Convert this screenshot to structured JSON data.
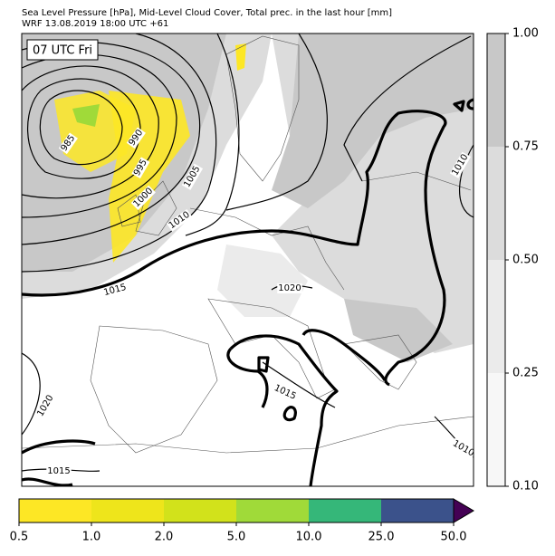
{
  "header": {
    "line1": "Sea Level Pressure [hPa], Mid-Level Cloud Cover, Total prec. in the last hour [mm]",
    "line2": "WRF 13.08.2019 18:00 UTC +61"
  },
  "map": {
    "time_label": "07 UTC Fri",
    "contour_labels": [
      "985",
      "990",
      "995",
      "1000",
      "1005",
      "1010",
      "1015",
      "1020",
      "1015",
      "1020",
      "1015",
      "1010",
      "1010"
    ]
  },
  "cloud_colorbar": {
    "ticks": [
      "0.10",
      "0.25",
      "0.50",
      "0.75",
      "1.00"
    ],
    "colors": [
      "#f7f7f7",
      "#ebebeb",
      "#dcdcdc",
      "#c8c8c8"
    ]
  },
  "precip_colorbar": {
    "ticks": [
      "0.5",
      "1.0",
      "2.0",
      "5.0",
      "10.0",
      "25.0",
      "50.0"
    ],
    "colors": [
      "#fde725",
      "#eee51b",
      "#d2e21b",
      "#a0da39",
      "#35b779",
      "#3b528b"
    ],
    "extend_color": "#440154"
  }
}
